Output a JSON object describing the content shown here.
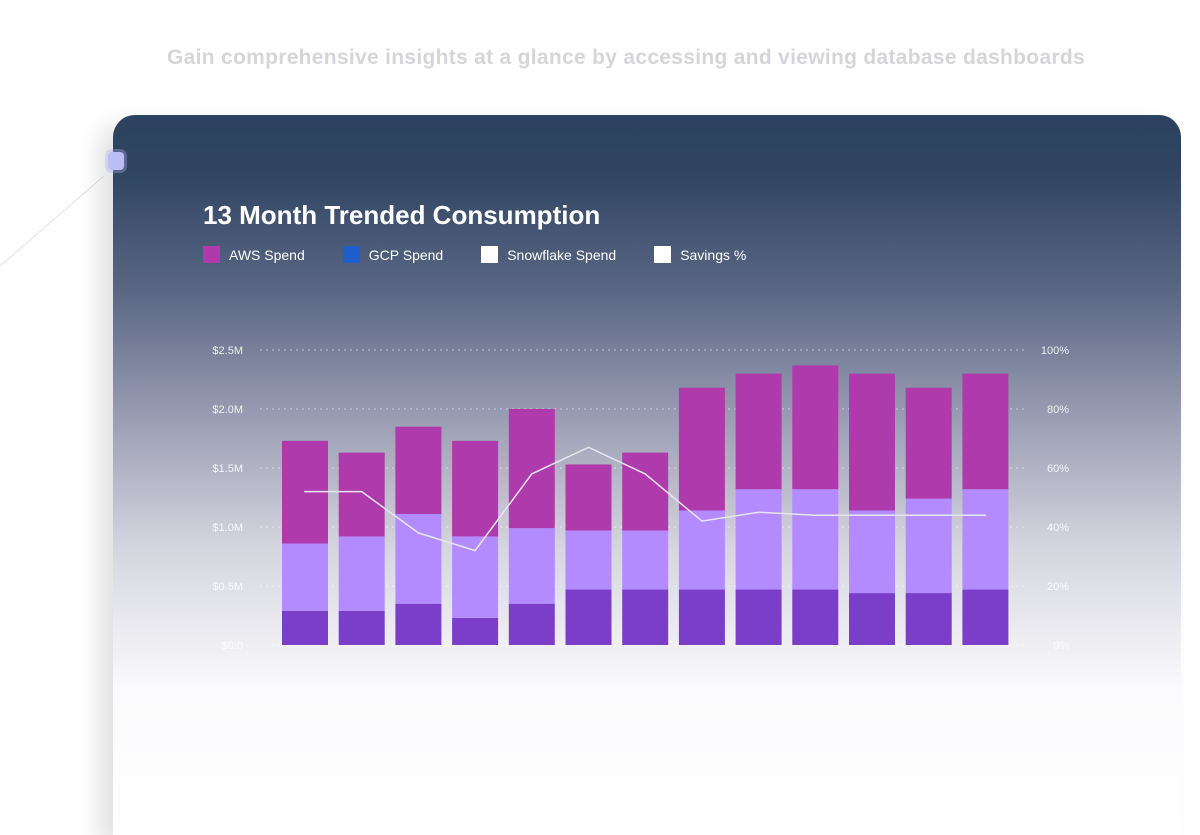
{
  "tagline": "Gain comprehensive insights at a glance by accessing and viewing database dashboards",
  "chart_data": {
    "type": "bar",
    "stacked": true,
    "title": "13 Month Trended Consumption",
    "legend": [
      {
        "label": "AWS Spend",
        "color": "#ae3aab"
      },
      {
        "label": "GCP Spend",
        "color": "#1f5fcc"
      },
      {
        "label": "Snowflake Spend",
        "color": "#ffffff"
      },
      {
        "label": "Savings %",
        "color": "#ffffff"
      }
    ],
    "legend_placement": "top-left",
    "y_left": {
      "ticks": [
        "$0.0",
        "$0.5M",
        "$1.0M",
        "$1.5M",
        "$2.0M",
        "$2.5M"
      ],
      "range": [
        0,
        2.5
      ],
      "unit": "$M"
    },
    "y_right": {
      "ticks": [
        "0%",
        "20%",
        "40%",
        "60%",
        "80%",
        "100%"
      ],
      "range": [
        0,
        100
      ]
    },
    "grid": true,
    "series": [
      {
        "color": "#7b3ec8",
        "values": [
          0.29,
          0.29,
          0.35,
          0.23,
          0.35,
          0.47,
          0.47,
          0.47,
          0.47,
          0.47,
          0.44,
          0.44,
          0.47
        ]
      },
      {
        "color": "#b38bff",
        "values": [
          0.57,
          0.63,
          0.76,
          0.69,
          0.64,
          0.5,
          0.5,
          0.67,
          0.85,
          0.85,
          0.7,
          0.8,
          0.85
        ]
      },
      {
        "color": "#ae3aab",
        "values": [
          0.87,
          0.71,
          0.74,
          0.81,
          1.01,
          0.56,
          0.66,
          1.04,
          0.98,
          1.05,
          1.16,
          0.94,
          0.98
        ]
      }
    ],
    "line": {
      "color": "#e8e4f0",
      "axis": "right",
      "values": [
        52,
        52,
        38,
        32,
        58,
        67,
        58,
        42,
        45,
        44,
        44,
        44,
        44
      ]
    }
  }
}
